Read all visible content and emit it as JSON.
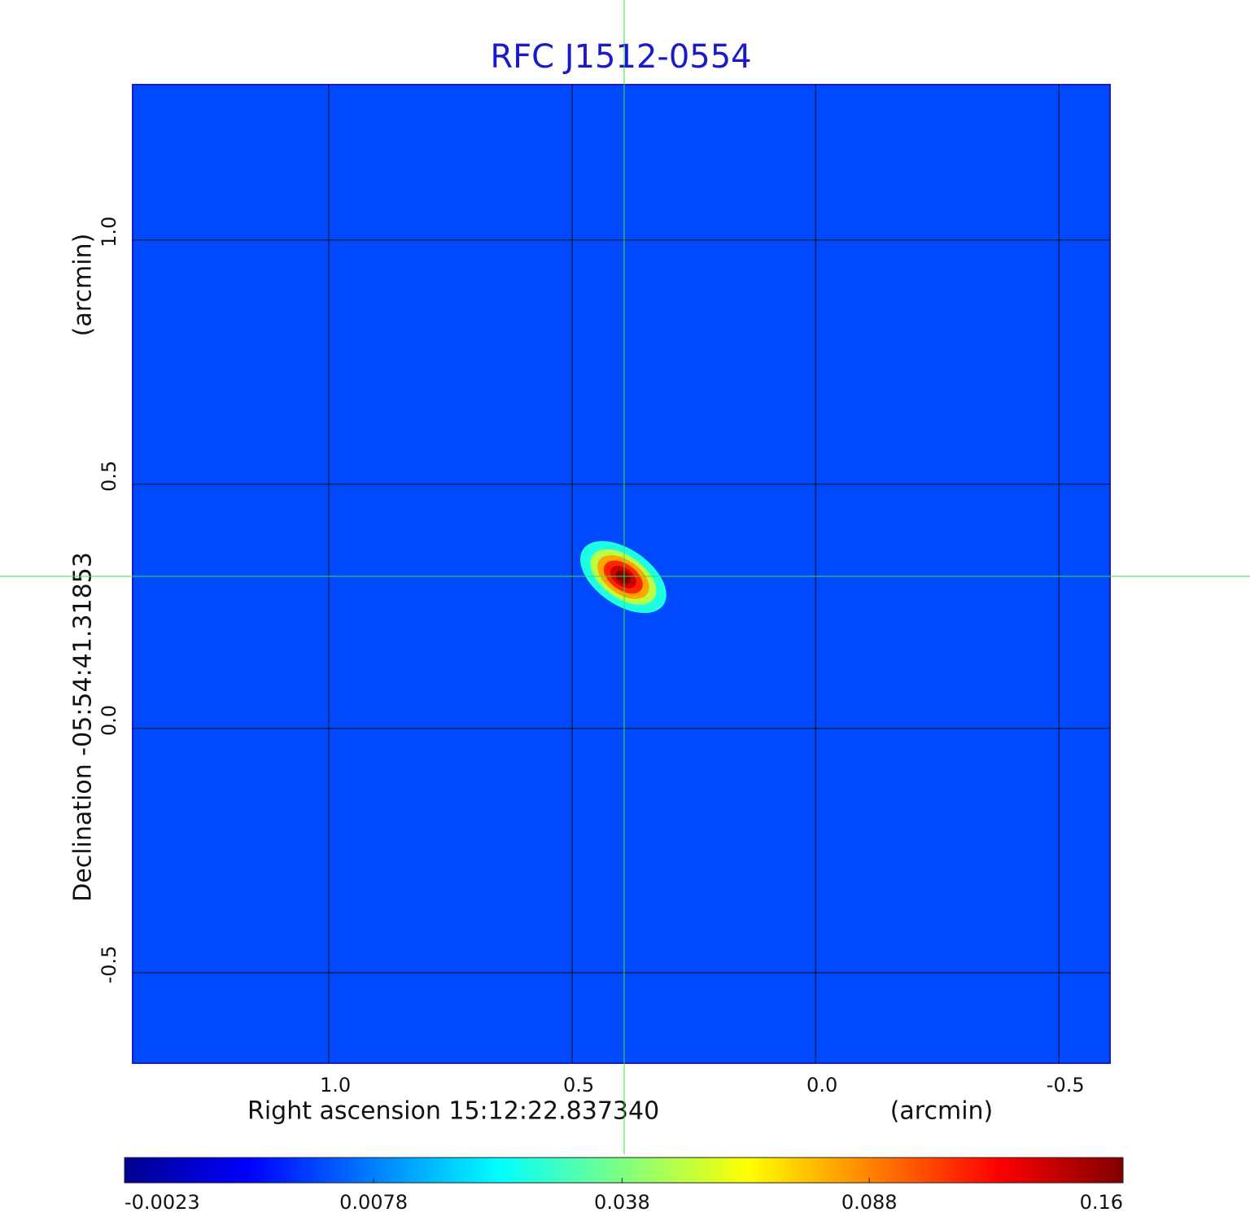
{
  "chart_data": {
    "type": "heatmap",
    "title": "RFC J1512-0554",
    "xlabel": "Right ascension  15:12:22.837340",
    "xunit": "(arcmin)",
    "ylabel": "Declination  -05:54:41.31853",
    "yunit": "(arcmin)",
    "xlim": [
      1.403,
      -0.605
    ],
    "ylim": [
      -0.685,
      1.318
    ],
    "xticks": [
      {
        "value": 1,
        "label": "1.0"
      },
      0.5,
      {
        "value": 0,
        "label": "0.0"
      },
      -0.5
    ],
    "yticks": [
      {
        "value": 1,
        "label": "1.0"
      },
      0.5,
      {
        "value": 0,
        "label": "0.0"
      },
      -0.5
    ],
    "grid": true,
    "colormap": "jet",
    "colorbar_scale": "sqrt",
    "clim": [
      -0.0023,
      0.16
    ],
    "cticks": [
      -0.0023,
      0.0078,
      0.038,
      0.088,
      0.16
    ],
    "background": 0.004,
    "points": [
      {
        "x": 0.395,
        "y": 0.31,
        "value": 0.16
      }
    ]
  }
}
